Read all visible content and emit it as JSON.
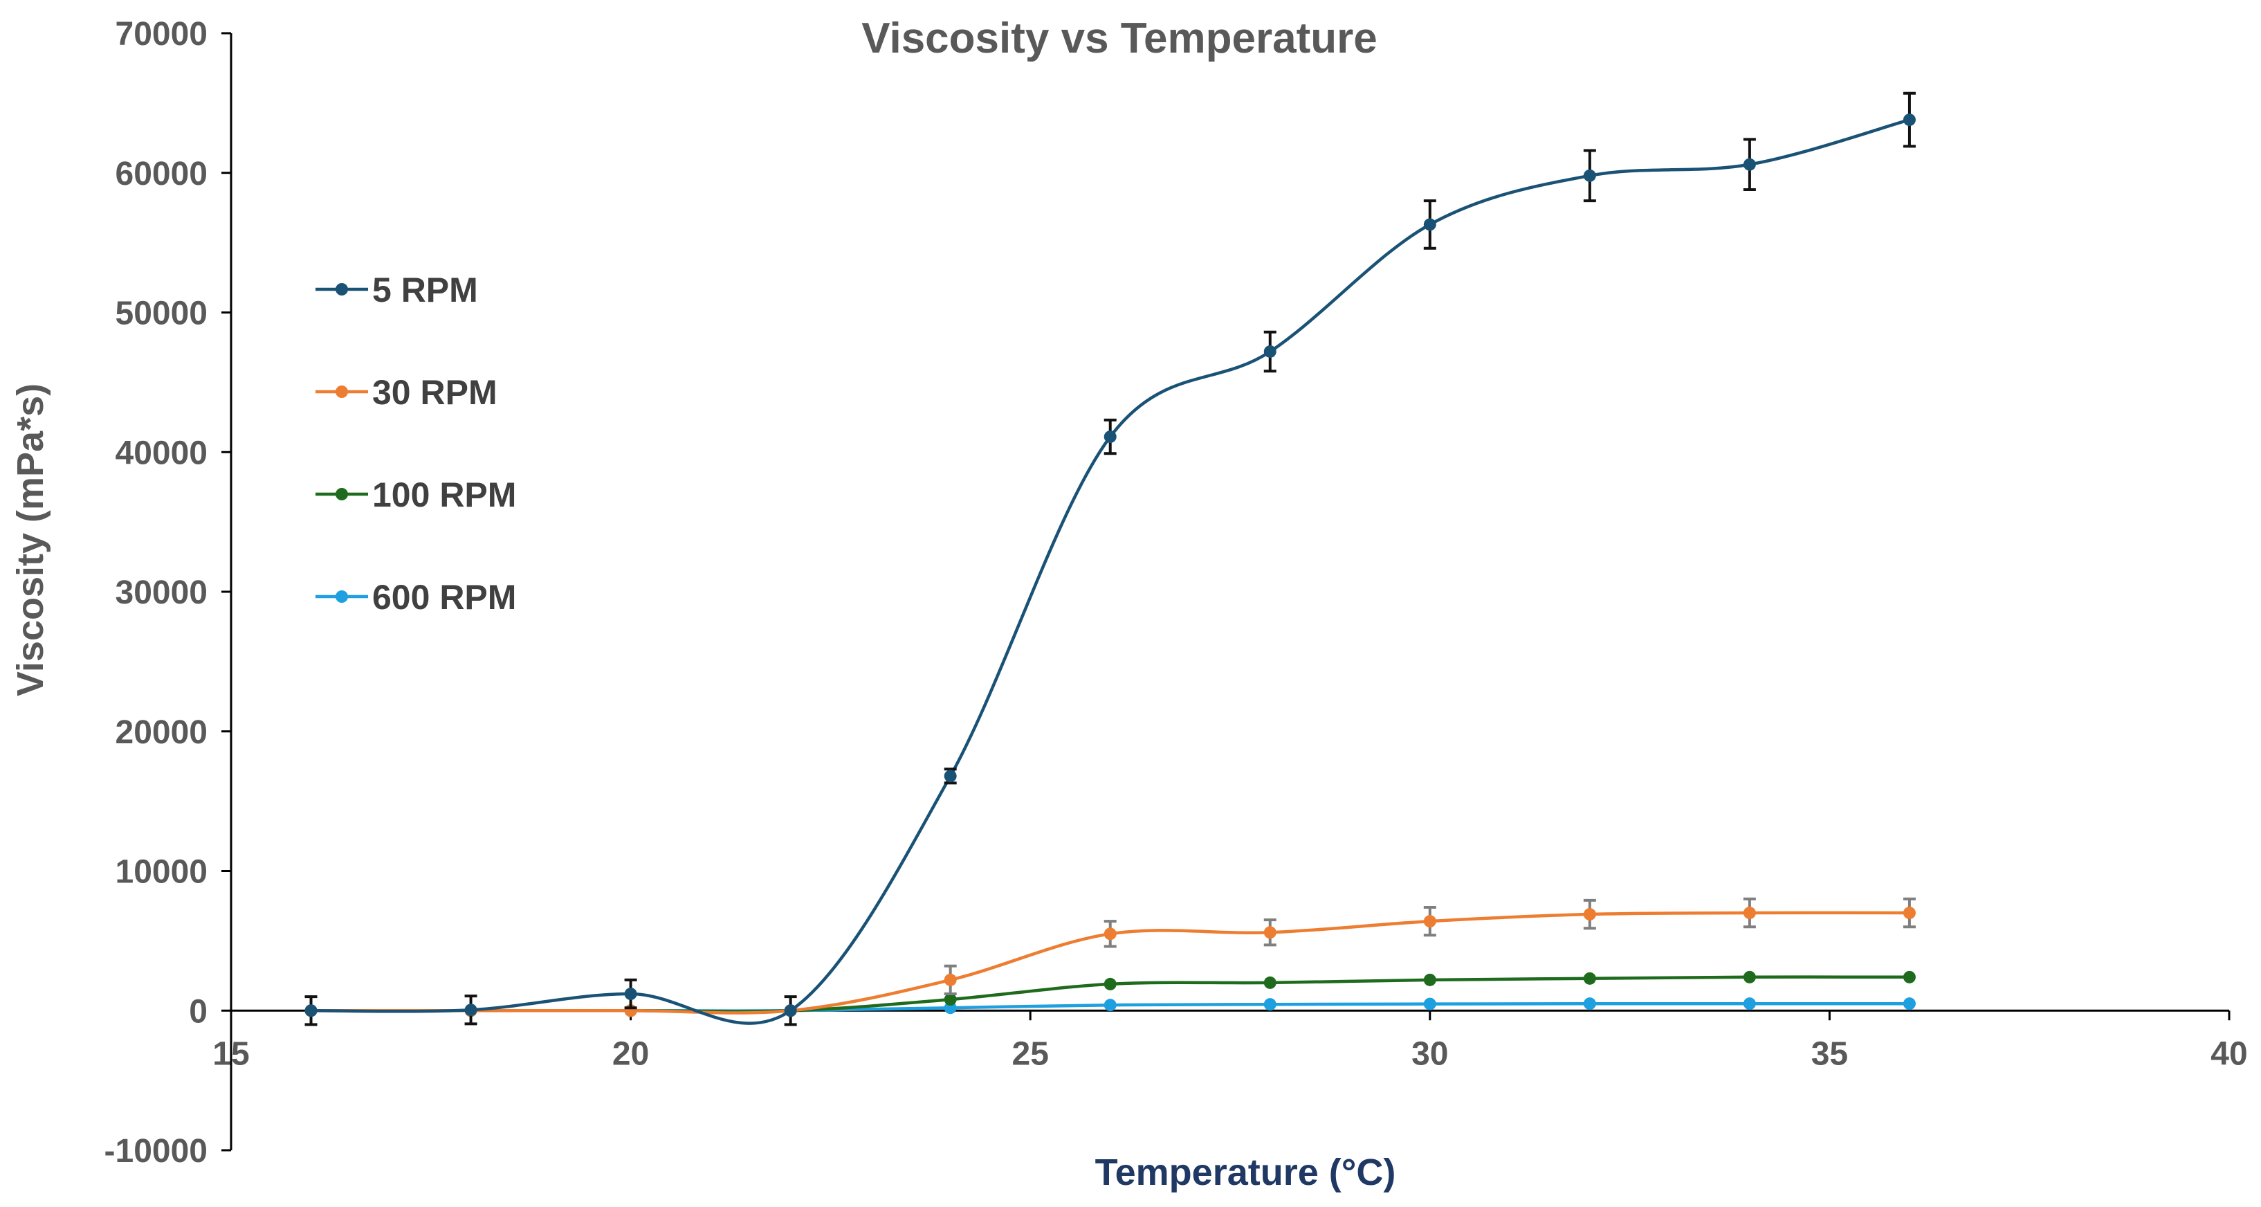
{
  "chart_data": {
    "type": "line",
    "title": "Viscosity vs Temperature",
    "xlabel": "Temperature (°C)",
    "ylabel": "Viscosity (mPa*s)",
    "xlim": [
      15,
      40
    ],
    "ylim": [
      -10000,
      70000
    ],
    "xticks": [
      15,
      20,
      25,
      30,
      35,
      40
    ],
    "yticks": [
      -10000,
      0,
      10000,
      20000,
      30000,
      40000,
      50000,
      60000,
      70000
    ],
    "grid": false,
    "smooth": true,
    "legend_position": "upper-left",
    "x": [
      16,
      18,
      20,
      22,
      24,
      26,
      28,
      30,
      32,
      34,
      36
    ],
    "series": [
      {
        "name": "5 RPM",
        "color": "#1a5276",
        "values": [
          0,
          50,
          1200,
          0,
          16800,
          41100,
          47200,
          56300,
          59800,
          60600,
          63800
        ],
        "errors": [
          1000,
          1000,
          1000,
          1000,
          500,
          1200,
          1400,
          1700,
          1800,
          1800,
          1900
        ],
        "error_color": "#111111"
      },
      {
        "name": "30 RPM",
        "color": "#ed7d31",
        "values": [
          0,
          0,
          0,
          0,
          2200,
          5500,
          5600,
          6400,
          6900,
          7000,
          7000
        ],
        "errors": [
          0,
          0,
          0,
          0,
          1000,
          900,
          900,
          1000,
          1000,
          1000,
          1000
        ],
        "error_color": "#7f7f7f"
      },
      {
        "name": "100 RPM",
        "color": "#1e6b1e",
        "values": [
          0,
          0,
          0,
          0,
          800,
          1900,
          2000,
          2200,
          2300,
          2400,
          2400
        ],
        "errors": [
          0,
          0,
          0,
          0,
          0,
          0,
          0,
          0,
          0,
          0,
          0
        ],
        "error_color": "#7f7f7f"
      },
      {
        "name": "600 RPM",
        "color": "#1ea0e0",
        "values": [
          0,
          0,
          0,
          0,
          200,
          400,
          450,
          480,
          500,
          500,
          500
        ],
        "errors": [
          0,
          0,
          0,
          0,
          0,
          0,
          0,
          0,
          0,
          0,
          0
        ],
        "error_color": "#7f7f7f"
      }
    ]
  }
}
